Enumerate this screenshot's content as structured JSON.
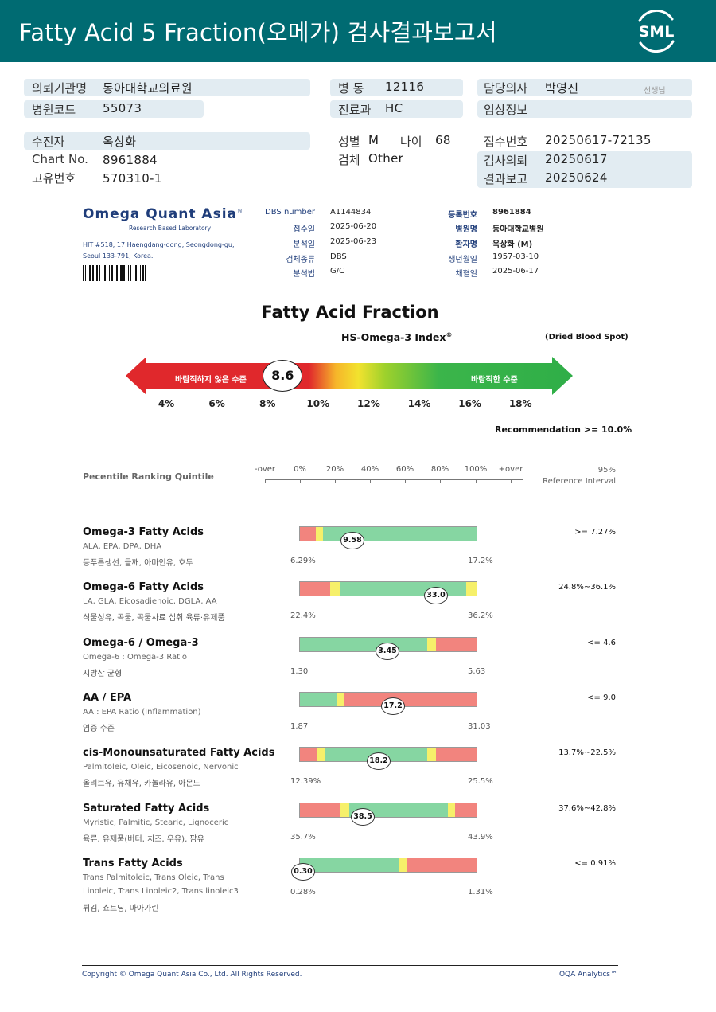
{
  "header": {
    "title": "Fatty Acid 5 Fraction(오메가) 검사결과보고서",
    "logo_text": "SML",
    "bg_color": "#006b72"
  },
  "info": {
    "institution_label": "의뢰기관명",
    "institution": "동아대학교의료원",
    "hospital_code_label": "병원코드",
    "hospital_code": "55073",
    "ward_label": "병  동",
    "ward": "12116",
    "dept_label": "진료과",
    "dept": "HC",
    "doctor_label": "담당의사",
    "doctor": "박영진",
    "doctor_suffix": "선생님",
    "clinical_label": "임상정보",
    "clinical": "",
    "patient_label": "수진자",
    "patient": "옥상화",
    "chart_label": "Chart No.",
    "chart": "8961884",
    "unique_label": "고유번호",
    "unique": "570310-1",
    "sex_label": "성별",
    "sex": "M",
    "age_label": "나이",
    "age": "68",
    "specimen_label": "검체",
    "specimen": "Other",
    "receipt_label": "접수번호",
    "receipt": "20250617-72135",
    "request_label": "검사의뢰",
    "request": "20250617",
    "report_label": "결과보고",
    "report": "20250624"
  },
  "lab": {
    "name": "Omega Quant Asia",
    "reg_mark": "®",
    "tagline": "Research Based Laboratory",
    "address1": "HIT #518, 17 Haengdang-dong, Seongdong-gu,",
    "address2": "Seoul 133-791, Korea.",
    "dbs_number_label": "DBS number",
    "dbs_number": "A1144834",
    "received_label": "접수일",
    "received": "2025-06-20",
    "analyzed_label": "분석일",
    "analyzed": "2025-06-23",
    "sample_type_label": "검체종류",
    "sample_type": "DBS",
    "method_label": "분석법",
    "method": "G/C",
    "reg_no_label": "등록번호",
    "reg_no": "8961884",
    "hospital_label": "병원명",
    "hospital": "동아대학교병원",
    "patient_name_label": "환자명",
    "patient_name": "옥상화 (M)",
    "dob_label": "생년월일",
    "dob": "1957-03-10",
    "draw_label": "채혈일",
    "draw": "2025-06-17"
  },
  "index": {
    "section_title": "Fatty Acid Fraction",
    "index_title": "HS-Omega-3 Index",
    "index_reg": "®",
    "sample_note": "(Dried Blood Spot)",
    "bad_label": "바람직하지 않은 수준",
    "good_label": "바람직한 수준",
    "value": "8.6",
    "value_num": 8.6,
    "scale_min": 3,
    "scale_max": 19,
    "ticks": [
      "4%",
      "6%",
      "8%",
      "10%",
      "12%",
      "14%",
      "16%",
      "18%"
    ],
    "recommendation": "Recommendation  >= 10.0%"
  },
  "percentile": {
    "title": "Pecentile Ranking Quintile",
    "ticks": [
      "-over",
      "0%",
      "20%",
      "40%",
      "60%",
      "80%",
      "100%",
      "+over"
    ],
    "ref_line1": "95%",
    "ref_line2": "Reference Interval"
  },
  "rows": [
    {
      "name": "Omega-3 Fatty Acids",
      "sub": "ALA, EPA, DPA, DHA",
      "food": "등푸른생선, 들깨, 아마인유, 호두",
      "min": "6.29%",
      "max": "17.2%",
      "value": "9.58",
      "ref": ">= 7.27%"
    },
    {
      "name": "Omega-6 Fatty Acids",
      "sub": "LA, GLA, Eicosadienoic, DGLA, AA",
      "food": "식물성유, 곡물, 곡물사료 섭취 육류·유제품",
      "min": "22.4%",
      "max": "36.2%",
      "value": "33.0",
      "ref": "24.8%~36.1%"
    },
    {
      "name": "Omega-6 / Omega-3",
      "sub": "Omega-6 : Omega-3 Ratio",
      "food": "지방산 균형",
      "min": "1.30",
      "max": "5.63",
      "value": "3.45",
      "ref": "<= 4.6"
    },
    {
      "name": "AA / EPA",
      "sub": "AA : EPA Ratio (Inflammation)",
      "food": "염증 수준",
      "min": "1.87",
      "max": "31.03",
      "value": "17.2",
      "ref": "<= 9.0"
    },
    {
      "name": "cis-Monounsaturated Fatty Acids",
      "sub": "Palmitoleic, Oleic, Eicosenoic, Nervonic",
      "food": "올리브유, 유채유, 카놀라유, 아몬드",
      "min": "12.39%",
      "max": "25.5%",
      "value": "18.2",
      "ref": "13.7%~22.5%"
    },
    {
      "name": "Saturated Fatty Acids",
      "sub": "Myristic, Palmitic, Stearic, Lignoceric",
      "food": "육류, 유제품(버터, 치즈, 우유), 팜유",
      "min": "35.7%",
      "max": "43.9%",
      "value": "38.5",
      "ref": "37.6%~42.8%"
    },
    {
      "name": "Trans Fatty Acids",
      "sub": "Trans Palmitoleic, Trans Oleic, Trans",
      "sub2": "Linoleic, Trans Linoleic2, Trans linoleic3",
      "food": "튀김, 쇼트닝, 마아가린",
      "min": "0.28%",
      "max": "1.31%",
      "value": "0.30",
      "ref": "<= 0.91%"
    }
  ],
  "footer": {
    "copyright": "Copyright © Omega Quant Asia Co., Ltd.  All Rights Reserved.",
    "brand": "OQA Analytics™"
  },
  "colors": {
    "red": "#f2847e",
    "green": "#86d6a2",
    "yellow": "#f6f06a",
    "navy": "#1f3d7a"
  }
}
